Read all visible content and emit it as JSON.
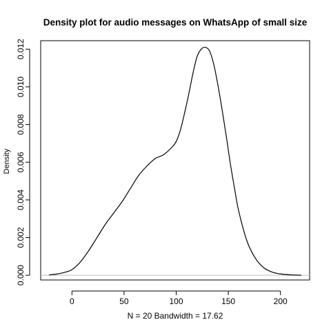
{
  "chart_data": {
    "type": "line",
    "title": "Density plot for audio messages on WhatsApp of small size",
    "xlabel": "N = 20   Bandwidth = 17.62",
    "ylabel": "Density",
    "xlim": [
      -30,
      228
    ],
    "ylim": [
      -0.00025,
      0.01245
    ],
    "x_ticks": [
      0,
      50,
      100,
      150,
      200
    ],
    "x_tick_labels": [
      "0",
      "50",
      "100",
      "150",
      "200"
    ],
    "y_ticks": [
      0.0,
      0.002,
      0.004,
      0.006,
      0.008,
      0.01,
      0.012
    ],
    "y_tick_labels": [
      "0.000",
      "0.002",
      "0.004",
      "0.006",
      "0.008",
      "0.010",
      "0.012"
    ],
    "grid": false,
    "baseline": 0,
    "series": [
      {
        "color": "#000000",
        "x": [
          -22,
          -15,
          -8,
          0,
          8,
          16,
          24,
          32,
          40,
          48,
          56,
          64,
          72,
          80,
          88,
          96,
          100,
          104,
          108,
          112,
          116,
          120,
          124,
          128,
          132,
          136,
          140,
          144,
          148,
          152,
          156,
          160,
          168,
          176,
          184,
          192,
          200,
          210,
          220
        ],
        "y": [
          2e-05,
          6e-05,
          0.00014,
          0.0003,
          0.0007,
          0.0013,
          0.002,
          0.0027,
          0.0033,
          0.0039,
          0.0046,
          0.0053,
          0.0058,
          0.0062,
          0.0064,
          0.0068,
          0.0071,
          0.0077,
          0.0086,
          0.0096,
          0.0107,
          0.0116,
          0.012,
          0.0121,
          0.0119,
          0.0112,
          0.0101,
          0.0088,
          0.0074,
          0.0059,
          0.0046,
          0.0034,
          0.0018,
          0.0009,
          0.0004,
          0.00017,
          7e-05,
          2e-05,
          5e-06
        ]
      }
    ]
  }
}
